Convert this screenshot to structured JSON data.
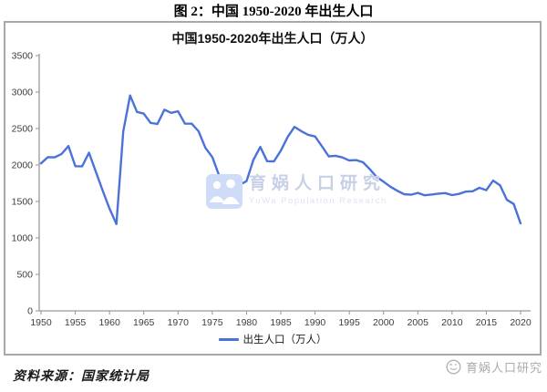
{
  "figure_title": "图 2：中国 1950-2020 年出生人口",
  "chart": {
    "title": "中国1950-2020年出生人口（万人）",
    "legend_label": "出生人口（万人）",
    "line_color": "#4a72d9",
    "axis_color": "#9a9a9a",
    "tick_text_color": "#3d3d3d",
    "box_border_color": "#a8a8a8"
  },
  "watermark_center": {
    "icon": "yuwa-people-logo-icon",
    "text": "育娲人口研究",
    "subtext": "YuWa Population Research",
    "text_color": "#c7d0e6",
    "icon_color": "#cfdcf7"
  },
  "watermark_bottom": {
    "icon": "yuwa-smiley-logo-icon",
    "text": "育娲人口研究",
    "color": "#ababab"
  },
  "source_note": "资料来源：国家统计局",
  "chart_data": {
    "type": "line",
    "title": "中国1950-2020年出生人口（万人）",
    "xlabel": "",
    "ylabel": "",
    "xlim": [
      1950,
      2020
    ],
    "ylim": [
      0,
      3500
    ],
    "xticks": [
      1950,
      1955,
      1960,
      1965,
      1970,
      1975,
      1980,
      1985,
      1990,
      1995,
      2000,
      2005,
      2010,
      2015,
      2020
    ],
    "yticks": [
      0,
      500,
      1000,
      1500,
      2000,
      2500,
      3000,
      3500
    ],
    "grid": false,
    "legend_position": "bottom",
    "series": [
      {
        "name": "出生人口（万人）",
        "x": [
          1950,
          1951,
          1952,
          1953,
          1954,
          1955,
          1956,
          1957,
          1958,
          1959,
          1960,
          1961,
          1962,
          1963,
          1964,
          1965,
          1966,
          1967,
          1968,
          1969,
          1970,
          1971,
          1972,
          1973,
          1974,
          1975,
          1976,
          1977,
          1978,
          1979,
          1980,
          1981,
          1982,
          1983,
          1984,
          1985,
          1986,
          1987,
          1988,
          1989,
          1990,
          1991,
          1992,
          1993,
          1994,
          1995,
          1996,
          1997,
          1998,
          1999,
          2000,
          2001,
          2002,
          2003,
          2004,
          2005,
          2006,
          2007,
          2008,
          2009,
          2010,
          2011,
          2012,
          2013,
          2014,
          2015,
          2016,
          2017,
          2018,
          2019,
          2020
        ],
        "values": [
          2023,
          2107,
          2105,
          2151,
          2260,
          1984,
          1982,
          2169,
          1909,
          1650,
          1402,
          1190,
          2460,
          2954,
          2729,
          2704,
          2577,
          2563,
          2757,
          2715,
          2736,
          2567,
          2566,
          2463,
          2235,
          2109,
          1853,
          1786,
          1745,
          1727,
          1779,
          2069,
          2247,
          2052,
          2050,
          2196,
          2384,
          2523,
          2464,
          2414,
          2391,
          2258,
          2119,
          2126,
          2104,
          2063,
          2067,
          2038,
          1942,
          1834,
          1771,
          1702,
          1647,
          1599,
          1593,
          1617,
          1585,
          1595,
          1608,
          1615,
          1588,
          1604,
          1635,
          1640,
          1687,
          1655,
          1786,
          1723,
          1523,
          1465,
          1200
        ]
      }
    ]
  }
}
